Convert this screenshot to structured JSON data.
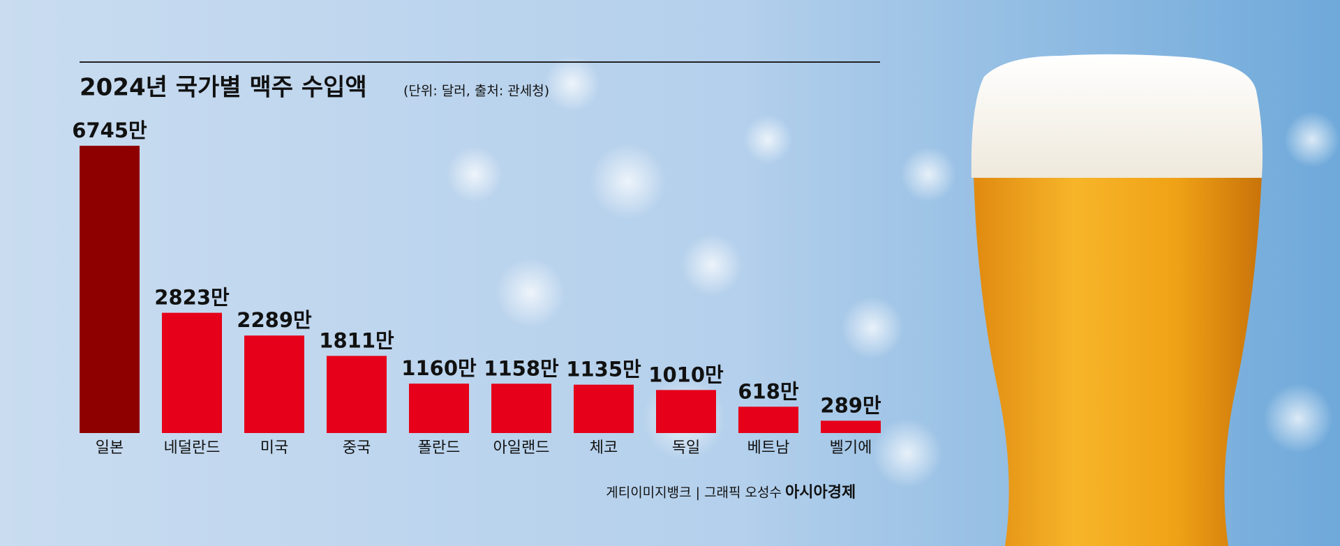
{
  "chart_data": {
    "type": "bar",
    "title": "2024년 국가별 맥주 수입액",
    "subtitle": "(단위: 달러, 출처: 관세청)",
    "categories": [
      "일본",
      "네덜란드",
      "미국",
      "중국",
      "폴란드",
      "아일랜드",
      "체코",
      "독일",
      "베트남",
      "벨기에"
    ],
    "values": [
      6745,
      2823,
      2289,
      1811,
      1160,
      1158,
      1135,
      1010,
      618,
      289
    ],
    "value_labels": [
      "6745만",
      "2823만",
      "2289만",
      "1811만",
      "1160만",
      "1158만",
      "1135만",
      "1010만",
      "618만",
      "289만"
    ],
    "colors": [
      "#8e0000",
      "#e60019",
      "#e60019",
      "#e60019",
      "#e60019",
      "#e60019",
      "#e60019",
      "#e60019",
      "#e60019",
      "#e60019"
    ],
    "credit": "게티이미지뱅크 | 그래픽 오성수",
    "brand": "아시아경제"
  }
}
